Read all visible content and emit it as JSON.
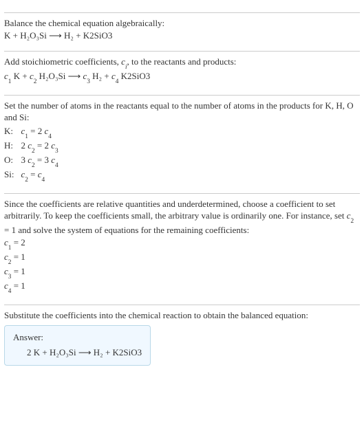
{
  "section1": {
    "line1": "Balance the chemical equation algebraically:",
    "eq": "K + H₂O₃Si  ⟶  H₂ + K2SiO3"
  },
  "section2": {
    "line1_a": "Add stoichiometric coefficients, ",
    "line1_c": "c",
    "line1_i": "i",
    "line1_b": ", to the reactants and products:",
    "eq_pre_c1": "c",
    "eq_s1": "1",
    "eq_t1": " K + ",
    "eq_c2": "c",
    "eq_s2": "2",
    "eq_t2": " H₂O₃Si  ⟶  ",
    "eq_c3": "c",
    "eq_s3": "3",
    "eq_t3": " H₂ + ",
    "eq_c4": "c",
    "eq_s4": "4",
    "eq_t4": " K2SiO3"
  },
  "section3": {
    "line1": "Set the number of atoms in the reactants equal to the number of atoms in the products for K, H, O and Si:",
    "rows": [
      {
        "el": "K:",
        "c_a": "c",
        "s_a": "1",
        "mid": " = 2 ",
        "c_b": "c",
        "s_b": "4",
        "pre": ""
      },
      {
        "el": "H:",
        "c_a": "c",
        "s_a": "2",
        "mid": " = 2 ",
        "c_b": "c",
        "s_b": "3",
        "pre": "2 "
      },
      {
        "el": "O:",
        "c_a": "c",
        "s_a": "2",
        "mid": " = 3 ",
        "c_b": "c",
        "s_b": "4",
        "pre": "3 "
      },
      {
        "el": "Si:",
        "c_a": "c",
        "s_a": "2",
        "mid": " = ",
        "c_b": "c",
        "s_b": "4",
        "pre": ""
      }
    ]
  },
  "section4": {
    "l1a": "Since the coefficients are relative quantities and underdetermined, choose a coefficient to set arbitrarily. To keep the coefficients small, the arbitrary value is ordinarily one. For instance, set ",
    "l1c": "c",
    "l1s": "2",
    "l1b": " = 1 and solve the system of equations for the remaining coefficients:",
    "coefs": [
      {
        "c": "c",
        "s": "1",
        "v": " = 2"
      },
      {
        "c": "c",
        "s": "2",
        "v": " = 1"
      },
      {
        "c": "c",
        "s": "3",
        "v": " = 1"
      },
      {
        "c": "c",
        "s": "4",
        "v": " = 1"
      }
    ]
  },
  "section5": {
    "line1": "Substitute the coefficients into the chemical reaction to obtain the balanced equation:"
  },
  "answer": {
    "label": "Answer:",
    "eq": "2 K + H₂O₃Si  ⟶  H₂ + K2SiO3"
  }
}
